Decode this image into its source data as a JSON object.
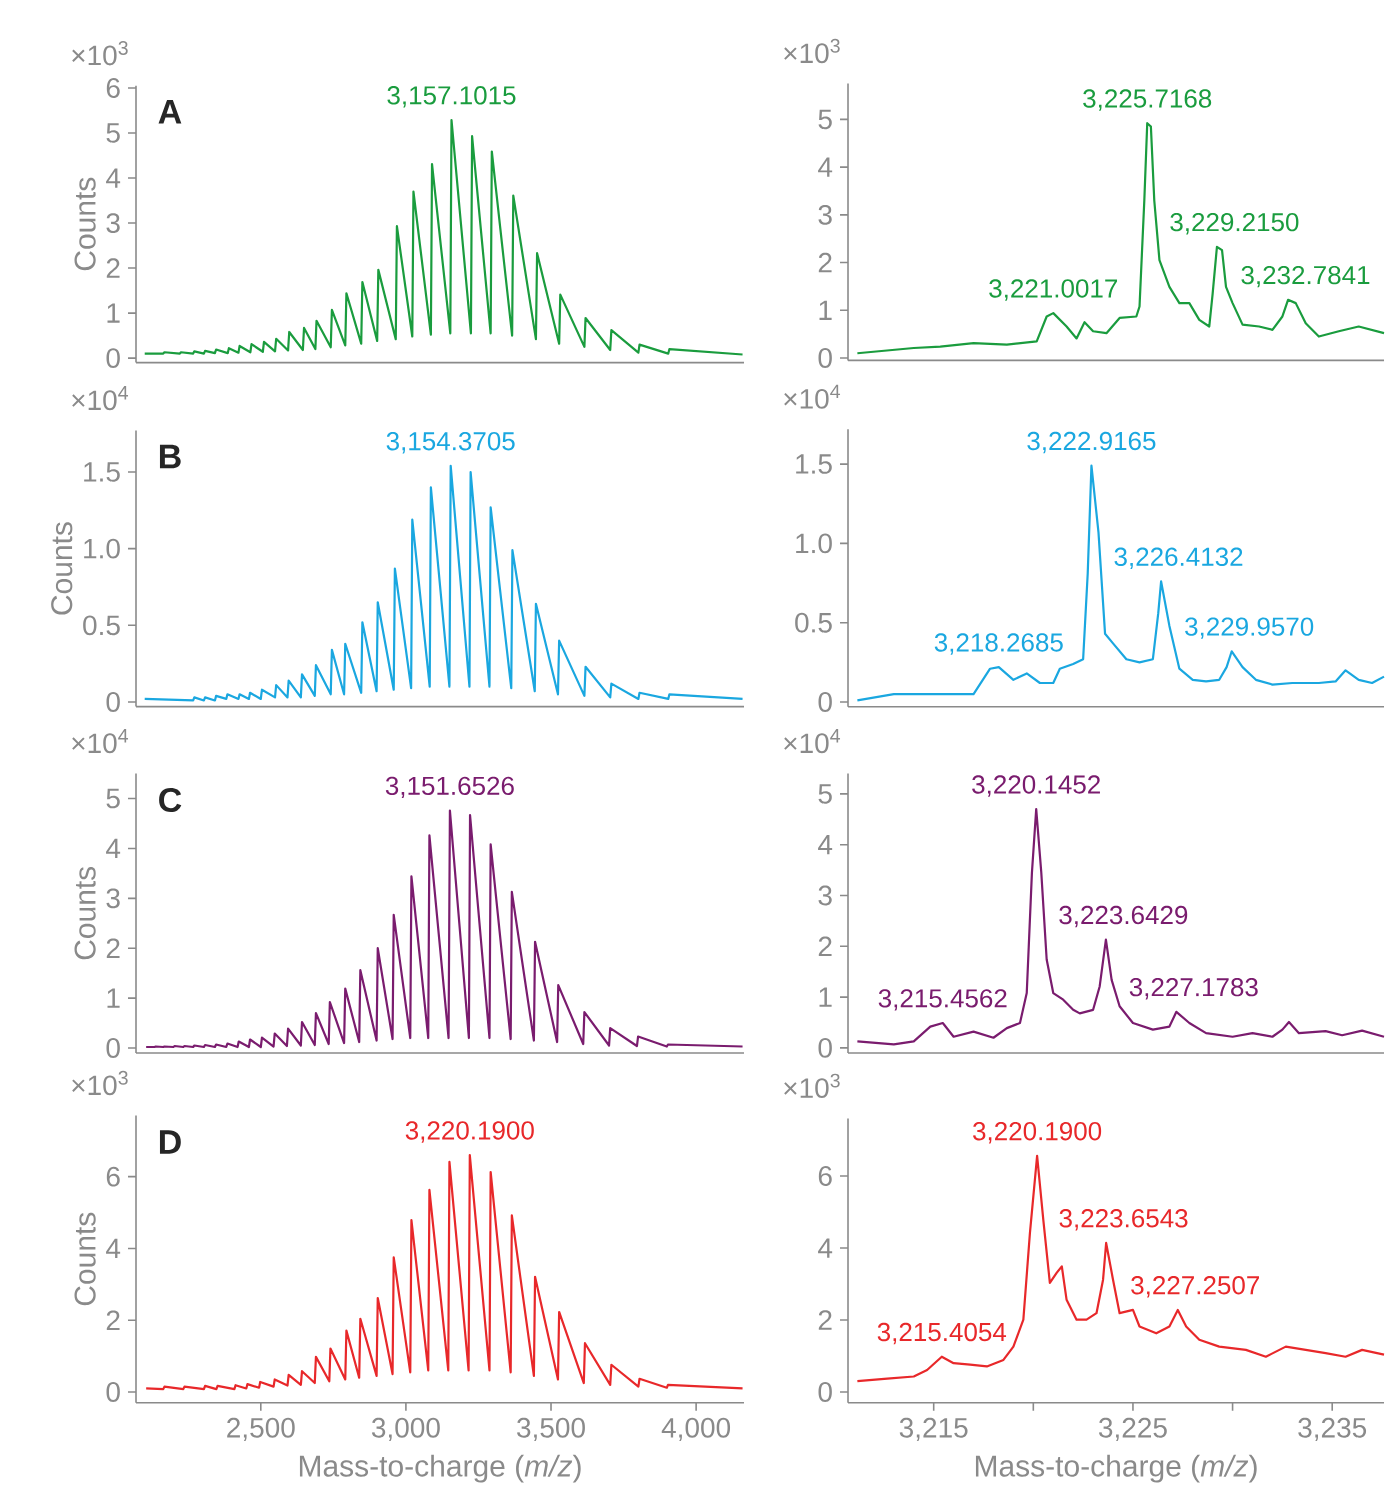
{
  "chart_data": [
    {
      "type": "line",
      "title": "A",
      "ylabel": "Counts",
      "color": "#1a9c3e",
      "xlim": [
        2070,
        4165
      ],
      "ylim": [
        -0.1,
        6.05
      ],
      "yticks": [
        0,
        1,
        2,
        3,
        4,
        5,
        6
      ],
      "tick_labels": "y",
      "annotations": [
        "×10$^{3}$",
        {
          "text": "3,157.1015",
          "x": 3157.1015,
          "y": 5.29
        }
      ],
      "x": [
        2100,
        2164,
        2168,
        2221,
        2225,
        2267,
        2271,
        2304,
        2308,
        2342,
        2346,
        2386,
        2390,
        2423,
        2427,
        2464,
        2468,
        2507,
        2511,
        2549,
        2553,
        2594,
        2598,
        2645,
        2649,
        2688,
        2692,
        2741,
        2745,
        2791,
        2795,
        2846,
        2850,
        2901,
        2905,
        2965,
        2969,
        3022,
        3026,
        3086,
        3090,
        3153,
        3157.1015,
        3224,
        3228,
        3292,
        3296,
        3366,
        3370,
        3448,
        3452,
        3528,
        3532,
        3615,
        3619,
        3704,
        3708,
        3801,
        3805,
        3904,
        3908,
        4160
      ],
      "values": [
        0.1,
        0.1,
        0.13,
        0.1,
        0.13,
        0.1,
        0.15,
        0.1,
        0.16,
        0.11,
        0.19,
        0.11,
        0.22,
        0.12,
        0.27,
        0.13,
        0.31,
        0.14,
        0.36,
        0.15,
        0.43,
        0.17,
        0.58,
        0.18,
        0.67,
        0.2,
        0.83,
        0.24,
        1.07,
        0.28,
        1.44,
        0.32,
        1.69,
        0.38,
        1.96,
        0.42,
        2.93,
        0.48,
        3.7,
        0.52,
        4.31,
        0.55,
        5.29,
        0.55,
        4.93,
        0.55,
        4.59,
        0.5,
        3.61,
        0.42,
        2.33,
        0.32,
        1.41,
        0.25,
        0.89,
        0.18,
        0.62,
        0.12,
        0.3,
        0.1,
        0.2,
        0.08
      ]
    },
    {
      "type": "line",
      "color": "#1a9c3e",
      "xlim": [
        3210.7,
        3237.6
      ],
      "ylim": [
        -0.05,
        5.75
      ],
      "yticks": [
        0,
        1,
        2,
        3,
        4,
        5
      ],
      "tick_labels": "y",
      "annotations": [
        "×10$^{3}$",
        {
          "text": "3,221.0017",
          "x": 3221.0017,
          "y": 0.94
        },
        {
          "text": "3,225.7168",
          "x": 3225.7168,
          "y": 4.92
        },
        {
          "text": "3,229.2150",
          "x": 3229.215,
          "y": 2.33
        },
        {
          "text": "3,232.7841",
          "x": 3232.7841,
          "y": 1.22
        }
      ],
      "x": [
        3211.17,
        3214.0,
        3215.33,
        3217.0,
        3218.67,
        3220.17,
        3220.67,
        3221.0017,
        3221.67,
        3222.17,
        3222.57,
        3223.0,
        3223.67,
        3224.33,
        3225.17,
        3225.33,
        3225.57,
        3225.7168,
        3225.9,
        3226.07,
        3226.33,
        3226.83,
        3227.33,
        3227.83,
        3228.33,
        3228.83,
        3229.0,
        3229.215,
        3229.47,
        3229.67,
        3230.0,
        3230.5,
        3231.33,
        3232.0,
        3232.5,
        3232.7841,
        3233.17,
        3233.67,
        3234.33,
        3235.33,
        3236.33,
        3237.6
      ],
      "values": [
        0.1,
        0.21,
        0.24,
        0.31,
        0.28,
        0.35,
        0.87,
        0.94,
        0.66,
        0.41,
        0.75,
        0.56,
        0.52,
        0.84,
        0.87,
        1.08,
        3.3,
        4.92,
        4.85,
        3.3,
        2.05,
        1.49,
        1.15,
        1.15,
        0.8,
        0.66,
        1.35,
        2.33,
        2.26,
        1.49,
        1.15,
        0.7,
        0.66,
        0.59,
        0.87,
        1.22,
        1.15,
        0.73,
        0.45,
        0.56,
        0.66,
        0.52
      ]
    },
    {
      "type": "line",
      "title": "B",
      "ylabel": "Counts",
      "color": "#1aa7e0",
      "xlim": [
        2070,
        4165
      ],
      "ylim": [
        -0.03,
        1.77
      ],
      "yticks": [
        0,
        0.5,
        {
          "value": 1,
          "label": "1.0"
        },
        1.5
      ],
      "tick_labels": "y",
      "annotations": [
        "×10$^{4}$",
        {
          "text": "3,154.3705",
          "x": 3154.3705,
          "y": 1.54
        }
      ],
      "x": [
        2100,
        2267,
        2271,
        2304,
        2308,
        2342,
        2346,
        2381,
        2385,
        2423,
        2427,
        2459,
        2463,
        2500,
        2504,
        2549,
        2553,
        2592,
        2596,
        2638,
        2642,
        2686,
        2690,
        2741,
        2745,
        2787,
        2791,
        2846,
        2850,
        2899,
        2903,
        2958,
        2962,
        3018,
        3022,
        3082,
        3086,
        3150,
        3154.3705,
        3219,
        3223,
        3288,
        3292,
        3363,
        3367,
        3444,
        3448,
        3524,
        3528,
        3615,
        3619,
        3704,
        3708,
        3801,
        3805,
        3904,
        3908,
        4160
      ],
      "values": [
        0.02,
        0.01,
        0.03,
        0.01,
        0.03,
        0.01,
        0.04,
        0.02,
        0.05,
        0.02,
        0.05,
        0.02,
        0.06,
        0.02,
        0.08,
        0.03,
        0.11,
        0.03,
        0.14,
        0.03,
        0.18,
        0.04,
        0.24,
        0.05,
        0.34,
        0.05,
        0.38,
        0.06,
        0.52,
        0.07,
        0.65,
        0.08,
        0.87,
        0.09,
        1.19,
        0.1,
        1.4,
        0.1,
        1.54,
        0.1,
        1.5,
        0.1,
        1.27,
        0.09,
        0.99,
        0.07,
        0.64,
        0.05,
        0.4,
        0.04,
        0.23,
        0.03,
        0.12,
        0.02,
        0.06,
        0.02,
        0.05,
        0.02
      ]
    },
    {
      "type": "line",
      "color": "#1aa7e0",
      "xlim": [
        3210.7,
        3237.6
      ],
      "ylim": [
        -0.03,
        1.72
      ],
      "yticks": [
        0,
        0.5,
        {
          "value": 1,
          "label": "1.0"
        },
        1.5
      ],
      "tick_labels": "y",
      "annotations": [
        "×10$^{4}$",
        {
          "text": "3,218.2685",
          "x": 3218.2685,
          "y": 0.22
        },
        {
          "text": "3,222.9165",
          "x": 3222.9165,
          "y": 1.49
        },
        {
          "text": "3,226.4132",
          "x": 3226.4132,
          "y": 0.76
        },
        {
          "text": "3,229.9570",
          "x": 3229.957,
          "y": 0.32
        }
      ],
      "x": [
        3211.17,
        3213.0,
        3215.33,
        3217.0,
        3217.83,
        3218.2685,
        3219.0,
        3219.67,
        3220.33,
        3221.0,
        3221.33,
        3222.0,
        3222.5,
        3222.73,
        3222.9165,
        3223.27,
        3223.6,
        3224.0,
        3224.67,
        3225.33,
        3226.0,
        3226.27,
        3226.4132,
        3226.83,
        3227.33,
        3228.0,
        3228.67,
        3229.33,
        3229.7,
        3229.957,
        3230.5,
        3231.17,
        3232.0,
        3233.0,
        3234.33,
        3235.17,
        3235.67,
        3236.33,
        3237.0,
        3237.6
      ],
      "values": [
        0.01,
        0.05,
        0.05,
        0.05,
        0.21,
        0.22,
        0.14,
        0.18,
        0.12,
        0.12,
        0.21,
        0.24,
        0.27,
        0.81,
        1.49,
        1.07,
        0.43,
        0.37,
        0.27,
        0.25,
        0.27,
        0.56,
        0.76,
        0.48,
        0.21,
        0.14,
        0.13,
        0.14,
        0.22,
        0.32,
        0.22,
        0.14,
        0.11,
        0.12,
        0.12,
        0.13,
        0.2,
        0.14,
        0.12,
        0.16
      ]
    },
    {
      "type": "line",
      "title": "C",
      "ylabel": "Counts",
      "color": "#7a1c6e",
      "xlim": [
        2070,
        4165
      ],
      "ylim": [
        -0.1,
        5.5
      ],
      "yticks": [
        0,
        1,
        2,
        3,
        4,
        5
      ],
      "tick_labels": "y",
      "annotations": [
        "×10$^{4}$",
        {
          "text": "3,151.6526",
          "x": 3151.6526,
          "y": 4.76
        }
      ],
      "x": [
        2105,
        2134,
        2138,
        2164,
        2168,
        2199,
        2203,
        2233,
        2237,
        2267,
        2271,
        2304,
        2308,
        2342,
        2346,
        2381,
        2385,
        2420,
        2424,
        2459,
        2463,
        2500,
        2504,
        2544,
        2548,
        2590,
        2594,
        2638,
        2642,
        2686,
        2690,
        2734,
        2738,
        2787,
        2791,
        2839,
        2843,
        2899,
        2903,
        2954,
        2958,
        3015,
        3019,
        3077,
        3081,
        3147,
        3151.6526,
        3217,
        3221,
        3288,
        3292,
        3361,
        3365,
        3441,
        3445,
        3521,
        3525,
        3611,
        3615,
        3700,
        3704,
        3796,
        3800,
        3899,
        3903,
        4160
      ],
      "values": [
        0.02,
        0.02,
        0.03,
        0.02,
        0.03,
        0.02,
        0.04,
        0.02,
        0.04,
        0.02,
        0.05,
        0.02,
        0.06,
        0.02,
        0.07,
        0.02,
        0.09,
        0.02,
        0.13,
        0.02,
        0.17,
        0.02,
        0.21,
        0.03,
        0.29,
        0.04,
        0.39,
        0.05,
        0.52,
        0.06,
        0.7,
        0.08,
        0.92,
        0.1,
        1.19,
        0.12,
        1.56,
        0.15,
        2.0,
        0.18,
        2.67,
        0.2,
        3.44,
        0.2,
        4.26,
        0.2,
        4.76,
        0.2,
        4.67,
        0.2,
        4.08,
        0.18,
        3.13,
        0.15,
        2.13,
        0.12,
        1.26,
        0.08,
        0.72,
        0.05,
        0.4,
        0.04,
        0.23,
        0.03,
        0.07,
        0.03
      ]
    },
    {
      "type": "line",
      "color": "#7a1c6e",
      "xlim": [
        3210.7,
        3237.6
      ],
      "ylim": [
        -0.1,
        5.4
      ],
      "yticks": [
        0,
        1,
        2,
        3,
        4,
        5
      ],
      "tick_labels": "y",
      "annotations": [
        "×10$^{4}$",
        {
          "text": "3,215.4562",
          "x": 3215.4562,
          "y": 0.49
        },
        {
          "text": "3,220.1452",
          "x": 3220.1452,
          "y": 4.7
        },
        {
          "text": "3,223.6429",
          "x": 3223.6429,
          "y": 2.13
        },
        {
          "text": "3,227.1783",
          "x": 3227.1783,
          "y": 0.71
        }
      ],
      "x": [
        3211.17,
        3213.0,
        3214.0,
        3214.83,
        3215.4562,
        3216.0,
        3217.0,
        3218.0,
        3218.67,
        3219.33,
        3219.67,
        3219.93,
        3220.1452,
        3220.4,
        3220.67,
        3221.0,
        3221.5,
        3222.0,
        3222.33,
        3223.0,
        3223.33,
        3223.6429,
        3223.93,
        3224.33,
        3225.0,
        3226.0,
        3226.83,
        3227.1783,
        3227.83,
        3228.67,
        3230.0,
        3231.0,
        3232.0,
        3232.5,
        3232.83,
        3233.33,
        3234.67,
        3235.5,
        3236.5,
        3237.6
      ],
      "values": [
        0.13,
        0.07,
        0.13,
        0.42,
        0.49,
        0.22,
        0.32,
        0.2,
        0.39,
        0.49,
        1.08,
        3.45,
        4.7,
        3.45,
        1.74,
        1.08,
        0.95,
        0.75,
        0.68,
        0.75,
        1.21,
        2.13,
        1.34,
        0.82,
        0.49,
        0.36,
        0.42,
        0.71,
        0.49,
        0.29,
        0.22,
        0.29,
        0.22,
        0.36,
        0.51,
        0.29,
        0.33,
        0.25,
        0.34,
        0.22
      ]
    },
    {
      "type": "line",
      "title": "D",
      "ylabel": "Counts",
      "xlabel": "Mass-to-charge (*m/z*)",
      "color": "#e8282a",
      "xlim": [
        2070,
        4165
      ],
      "ylim": [
        -0.3,
        7.7
      ],
      "yticks": [
        0,
        2,
        4,
        6
      ],
      "xticks": [
        {
          "value": 2500,
          "label": "2,500"
        },
        {
          "value": 3000,
          "label": "3,000"
        },
        {
          "value": 3500,
          "label": "3,500"
        },
        {
          "value": 4000,
          "label": "4,000"
        }
      ],
      "annotations": [
        "×10$^{3}$",
        {
          "text": "3,220.1900",
          "x": 3220.19,
          "y": 6.6
        }
      ],
      "x": [
        2105,
        2164,
        2168,
        2233,
        2237,
        2304,
        2308,
        2347,
        2351,
        2409,
        2413,
        2450,
        2454,
        2494,
        2498,
        2544,
        2548,
        2592,
        2596,
        2638,
        2642,
        2686,
        2690,
        2736,
        2740,
        2791,
        2795,
        2839,
        2843,
        2899,
        2903,
        2954,
        2958,
        3015,
        3019,
        3077,
        3081,
        3146,
        3150,
        3216,
        3220.19,
        3288,
        3292,
        3361,
        3365,
        3441,
        3445,
        3524,
        3528,
        3613,
        3617,
        3704,
        3708,
        3801,
        3805,
        3899,
        3903,
        4160
      ],
      "values": [
        0.1,
        0.08,
        0.15,
        0.08,
        0.15,
        0.08,
        0.17,
        0.08,
        0.17,
        0.08,
        0.19,
        0.1,
        0.22,
        0.12,
        0.28,
        0.15,
        0.35,
        0.18,
        0.48,
        0.2,
        0.58,
        0.25,
        0.98,
        0.3,
        1.21,
        0.35,
        1.71,
        0.4,
        2.04,
        0.45,
        2.62,
        0.5,
        3.75,
        0.55,
        4.79,
        0.6,
        5.63,
        0.6,
        6.41,
        0.6,
        6.6,
        0.6,
        6.13,
        0.55,
        4.92,
        0.45,
        3.21,
        0.35,
        2.23,
        0.25,
        1.36,
        0.2,
        0.76,
        0.15,
        0.37,
        0.12,
        0.2,
        0.1
      ]
    },
    {
      "type": "line",
      "xlabel": "Mass-to-charge (*m/z*)",
      "color": "#e8282a",
      "xlim": [
        3210.7,
        3237.6
      ],
      "ylim": [
        -0.3,
        7.6
      ],
      "yticks": [
        0,
        2,
        4,
        6
      ],
      "xticks": [
        {
          "value": 3215,
          "label": "3,215"
        },
        {
          "value": 3220,
          "label": null
        },
        {
          "value": 3225,
          "label": "3,225"
        },
        {
          "value": 3230,
          "label": null
        },
        {
          "value": 3235,
          "label": "3,235"
        }
      ],
      "annotations": [
        "×10$^{3}$",
        {
          "text": "3,215.4054",
          "x": 3215.4054,
          "y": 0.98
        },
        {
          "text": "3,220.1900",
          "x": 3220.19,
          "y": 6.56
        },
        {
          "text": "3,223.6543",
          "x": 3223.6543,
          "y": 4.14
        },
        {
          "text": "3,227.2507",
          "x": 3227.2507,
          "y": 2.28
        }
      ],
      "x": [
        3211.17,
        3212.67,
        3214.0,
        3214.67,
        3215.4054,
        3216.0,
        3216.83,
        3217.67,
        3218.5,
        3219.0,
        3219.5,
        3219.83,
        3220.19,
        3220.5,
        3220.83,
        3221.17,
        3221.43,
        3221.67,
        3222.17,
        3222.67,
        3223.17,
        3223.5,
        3223.6543,
        3224.0,
        3224.33,
        3225.0,
        3225.33,
        3226.17,
        3226.83,
        3227.2507,
        3227.67,
        3228.33,
        3229.33,
        3230.67,
        3231.67,
        3232.67,
        3233.67,
        3234.67,
        3235.67,
        3236.5,
        3237.6
      ],
      "values": [
        0.3,
        0.37,
        0.43,
        0.61,
        0.98,
        0.8,
        0.76,
        0.71,
        0.89,
        1.26,
        2.01,
        4.42,
        6.56,
        4.79,
        3.03,
        3.31,
        3.49,
        2.56,
        2.01,
        2.01,
        2.19,
        3.12,
        4.14,
        3.12,
        2.19,
        2.28,
        1.82,
        1.63,
        1.82,
        2.28,
        1.82,
        1.45,
        1.26,
        1.17,
        0.98,
        1.26,
        1.17,
        1.08,
        0.98,
        1.17,
        1.04
      ]
    }
  ]
}
